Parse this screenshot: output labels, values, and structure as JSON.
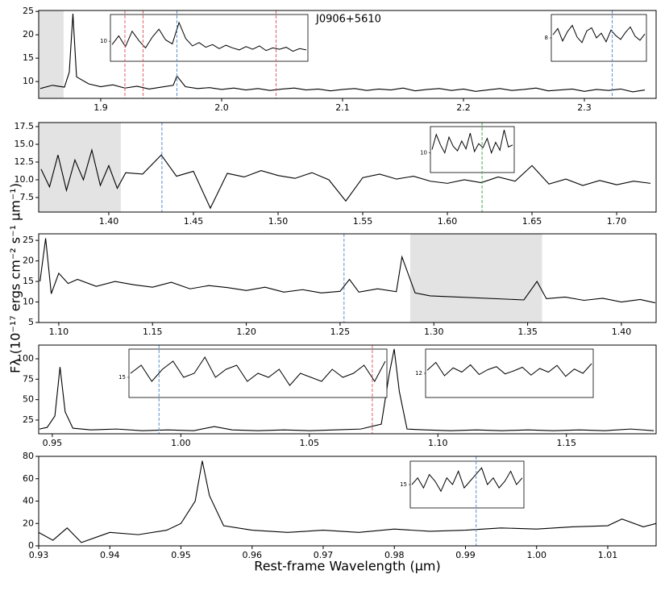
{
  "chart_data": [
    {
      "type": "line",
      "title": "J0906+5610",
      "color": "#000000",
      "xlim": [
        1.8487,
        2.3593
      ],
      "ylim": [
        6.4,
        25.2
      ],
      "xticks": [
        1.9,
        {
          "value": 2.0,
          "label": "2.0"
        },
        2.1,
        2.2,
        2.3
      ],
      "yticks": [
        10,
        15,
        20,
        25
      ],
      "x": [
        1.85,
        1.86,
        1.87,
        1.874,
        1.877,
        1.88,
        1.89,
        1.9,
        1.91,
        1.92,
        1.93,
        1.94,
        1.95,
        1.96,
        1.963,
        1.97,
        1.98,
        1.99,
        2.0,
        2.01,
        2.02,
        2.03,
        2.04,
        2.05,
        2.06,
        2.07,
        2.08,
        2.09,
        2.1,
        2.11,
        2.12,
        2.13,
        2.14,
        2.15,
        2.16,
        2.17,
        2.18,
        2.19,
        2.2,
        2.21,
        2.22,
        2.23,
        2.24,
        2.25,
        2.26,
        2.27,
        2.28,
        2.29,
        2.3,
        2.31,
        2.32,
        2.33,
        2.34,
        2.35
      ],
      "values": [
        8.5,
        9.2,
        8.8,
        12,
        24.5,
        11,
        9.5,
        8.9,
        9.3,
        8.6,
        9.0,
        8.4,
        8.8,
        9.2,
        11.2,
        8.9,
        8.5,
        8.7,
        8.3,
        8.6,
        8.2,
        8.5,
        8.1,
        8.4,
        8.6,
        8.2,
        8.4,
        8.0,
        8.3,
        8.5,
        8.1,
        8.4,
        8.2,
        8.6,
        8.0,
        8.3,
        8.5,
        8.1,
        8.4,
        7.9,
        8.2,
        8.5,
        8.1,
        8.3,
        8.6,
        8.0,
        8.2,
        8.4,
        7.9,
        8.3,
        8.1,
        8.4,
        7.8,
        8.2
      ],
      "shaded": [
        [
          1.8487,
          1.8693
        ]
      ],
      "vlines": [
        {
          "x": 1.92,
          "color": "#e06060"
        },
        {
          "x": 1.935,
          "color": "#e06060"
        },
        {
          "x": 1.963,
          "color": "#5b8fd0"
        },
        {
          "x": 2.045,
          "color": "#e06060"
        },
        {
          "x": 2.323,
          "color": "#5b8fd0"
        }
      ],
      "insets": [
        {
          "ylim": [
            7,
            14
          ],
          "yticks": [
            10
          ],
          "values": [
            9.5,
            10.8,
            9.2,
            11.5,
            10.1,
            9.0,
            10.6,
            11.8,
            10.2,
            9.6,
            12.8,
            10.4,
            9.3,
            9.8,
            9.1,
            9.5,
            8.9,
            9.4,
            9.0,
            8.7,
            9.2,
            8.8,
            9.3,
            8.6,
            9.0,
            8.8,
            9.1,
            8.5,
            8.9,
            8.7
          ]
        },
        {
          "ylim": [
            5,
            11
          ],
          "yticks": [
            8
          ],
          "values": [
            8.4,
            9.2,
            7.6,
            8.8,
            9.6,
            8.1,
            7.4,
            8.9,
            9.3,
            8.0,
            8.6,
            7.5,
            9.0,
            8.3,
            7.8,
            8.7,
            9.4,
            8.2,
            7.7,
            8.5
          ]
        }
      ]
    },
    {
      "type": "line",
      "color": "#000000",
      "xlim": [
        1.3586,
        1.7233
      ],
      "ylim": [
        5.45,
        18.07
      ],
      "xticks": [
        {
          "value": 1.4,
          "label": "1.40"
        },
        1.45,
        {
          "value": 1.5,
          "label": "1.50"
        },
        1.55,
        {
          "value": 1.6,
          "label": "1.60"
        },
        1.65,
        {
          "value": 1.7,
          "label": "1.70"
        }
      ],
      "yticks": [
        7.5,
        {
          "value": 10,
          "label": "10.0"
        },
        12.5,
        {
          "value": 15,
          "label": "15.0"
        },
        17.5
      ],
      "x": [
        1.36,
        1.365,
        1.37,
        1.375,
        1.38,
        1.385,
        1.39,
        1.395,
        1.4,
        1.405,
        1.41,
        1.42,
        1.431,
        1.44,
        1.45,
        1.46,
        1.47,
        1.48,
        1.49,
        1.5,
        1.51,
        1.52,
        1.53,
        1.54,
        1.55,
        1.56,
        1.57,
        1.58,
        1.59,
        1.6,
        1.61,
        1.62,
        1.63,
        1.64,
        1.65,
        1.66,
        1.67,
        1.68,
        1.69,
        1.7,
        1.71,
        1.72
      ],
      "values": [
        11.5,
        9.0,
        13.5,
        8.5,
        12.8,
        10.0,
        14.2,
        9.2,
        12.0,
        8.8,
        11.0,
        10.8,
        13.5,
        10.5,
        11.2,
        6.0,
        10.9,
        10.4,
        11.3,
        10.6,
        10.2,
        11.0,
        10.0,
        7.0,
        10.3,
        10.8,
        10.1,
        10.5,
        9.8,
        9.5,
        10.0,
        9.6,
        10.4,
        9.8,
        12.0,
        9.4,
        10.1,
        9.2,
        9.9,
        9.3,
        9.8,
        9.5
      ],
      "shaded": [
        [
          1.3586,
          1.4071
        ]
      ],
      "vlines": [
        {
          "x": 1.4314,
          "color": "#5b8fd0"
        },
        {
          "x": 1.6205,
          "color": "#4caf50"
        }
      ],
      "insets": [
        {
          "ylim": [
            7,
            14
          ],
          "yticks": [
            10
          ],
          "values": [
            10.5,
            12.8,
            11.2,
            10.0,
            12.4,
            11.0,
            10.3,
            11.8,
            10.6,
            13.0,
            10.2,
            11.4,
            10.8,
            12.2,
            10.0,
            11.6,
            10.4,
            13.5,
            10.9,
            11.2
          ]
        }
      ]
    },
    {
      "type": "line",
      "color": "#000000",
      "ylabel": "Fλ (10⁻¹⁷ ergs cm⁻² s⁻¹ μm⁻¹)",
      "xlim": [
        1.0893,
        1.4185
      ],
      "ylim": [
        5,
        26.6
      ],
      "xticks": [
        {
          "value": 1.1,
          "label": "1.10"
        },
        1.15,
        {
          "value": 1.2,
          "label": "1.20"
        },
        1.25,
        {
          "value": 1.3,
          "label": "1.30"
        },
        1.35,
        {
          "value": 1.4,
          "label": "1.40"
        }
      ],
      "yticks": [
        5,
        10,
        15,
        20,
        25
      ],
      "x": [
        1.09,
        1.093,
        1.096,
        1.1,
        1.105,
        1.11,
        1.12,
        1.13,
        1.14,
        1.15,
        1.16,
        1.17,
        1.18,
        1.19,
        1.2,
        1.21,
        1.22,
        1.23,
        1.24,
        1.25,
        1.255,
        1.26,
        1.27,
        1.28,
        1.283,
        1.29,
        1.298,
        1.348,
        1.355,
        1.36,
        1.37,
        1.38,
        1.39,
        1.4,
        1.41,
        1.418
      ],
      "values": [
        15,
        25.5,
        12,
        17,
        14.5,
        15.5,
        13.8,
        15,
        14.2,
        13.6,
        14.8,
        13.2,
        14,
        13.5,
        12.8,
        13.6,
        12.4,
        13,
        12.2,
        12.6,
        15.5,
        12.4,
        13.2,
        12.5,
        21,
        12.2,
        11.5,
        10.5,
        15,
        10.8,
        11.2,
        10.4,
        10.9,
        10,
        10.6,
        9.8
      ],
      "shaded": [
        [
          1.2874,
          1.3577
        ]
      ],
      "vlines": [
        {
          "x": 1.2521,
          "color": "#5b8fd0"
        }
      ],
      "insets": []
    },
    {
      "type": "line",
      "color": "#000000",
      "xlim": [
        0.9447,
        1.1849
      ],
      "ylim": [
        8.2,
        116.8
      ],
      "xticks": [
        0.95,
        {
          "value": 1.0,
          "label": "1.00"
        },
        1.05,
        {
          "value": 1.1,
          "label": "1.10"
        },
        1.15
      ],
      "yticks": [
        25,
        50,
        75,
        100
      ],
      "x": [
        0.945,
        0.948,
        0.951,
        0.953,
        0.955,
        0.958,
        0.965,
        0.975,
        0.985,
        0.995,
        1.005,
        1.013,
        1.02,
        1.03,
        1.04,
        1.05,
        1.06,
        1.07,
        1.078,
        1.081,
        1.083,
        1.085,
        1.088,
        1.095,
        1.105,
        1.115,
        1.125,
        1.135,
        1.145,
        1.155,
        1.165,
        1.175,
        1.184
      ],
      "values": [
        14,
        16,
        30,
        90,
        35,
        15,
        13,
        14,
        12,
        13,
        12,
        17,
        13,
        12,
        13,
        12,
        13,
        14,
        20,
        80,
        112,
        60,
        14,
        13,
        12,
        13,
        12,
        13,
        12,
        13,
        12,
        14,
        12
      ],
      "shaded": [],
      "vlines": [
        {
          "x": 0.9915,
          "color": "#5b8fd0"
        },
        {
          "x": 1.0745,
          "color": "#e06060"
        }
      ],
      "insets": [
        {
          "ylim": [
            10,
            22
          ],
          "yticks": [
            15
          ],
          "values": [
            16,
            18,
            14,
            17,
            19,
            15,
            16,
            20,
            15,
            17,
            18,
            14,
            16,
            15,
            17,
            13,
            16,
            15,
            14,
            17,
            15,
            16,
            18,
            14,
            19
          ]
        },
        {
          "ylim": [
            8,
            16
          ],
          "yticks": [
            12
          ],
          "values": [
            12.5,
            13.8,
            11.6,
            12.9,
            12.2,
            13.4,
            11.8,
            12.6,
            13.1,
            11.9,
            12.4,
            13.0,
            11.7,
            12.8,
            12.2,
            13.3,
            11.5,
            12.7,
            12.0,
            13.6
          ]
        }
      ]
    },
    {
      "type": "line",
      "color": "#000000",
      "xlabel": "Rest-frame Wavelength (μm)",
      "xlim": [
        0.93,
        1.0168
      ],
      "ylim": [
        0,
        80
      ],
      "xticks": [
        0.93,
        0.94,
        0.95,
        0.96,
        0.97,
        0.98,
        0.99,
        {
          "value": 1.0,
          "label": "1.00"
        },
        1.01
      ],
      "yticks": [
        0,
        20,
        40,
        60,
        80
      ],
      "x": [
        0.93,
        0.932,
        0.934,
        0.936,
        0.94,
        0.944,
        0.948,
        0.95,
        0.952,
        0.953,
        0.954,
        0.956,
        0.96,
        0.965,
        0.97,
        0.975,
        0.98,
        0.985,
        0.99,
        0.995,
        1.0,
        1.005,
        1.01,
        1.012,
        1.015,
        1.0168
      ],
      "values": [
        12,
        5,
        16,
        3,
        12,
        10,
        14,
        20,
        40,
        76,
        45,
        18,
        14,
        12,
        14,
        12,
        15,
        13,
        14,
        16,
        15,
        17,
        18,
        24,
        17,
        20
      ],
      "shaded": [],
      "vlines": [
        {
          "x": 0.9915,
          "color": "#5b8fd0"
        }
      ],
      "insets": [
        {
          "ylim": [
            8,
            22
          ],
          "yticks": [
            15
          ],
          "values": [
            15,
            17,
            14,
            18,
            16,
            13,
            17,
            15,
            19,
            14,
            16,
            18,
            20,
            15,
            17,
            14,
            16,
            19,
            15,
            17
          ]
        }
      ]
    }
  ]
}
